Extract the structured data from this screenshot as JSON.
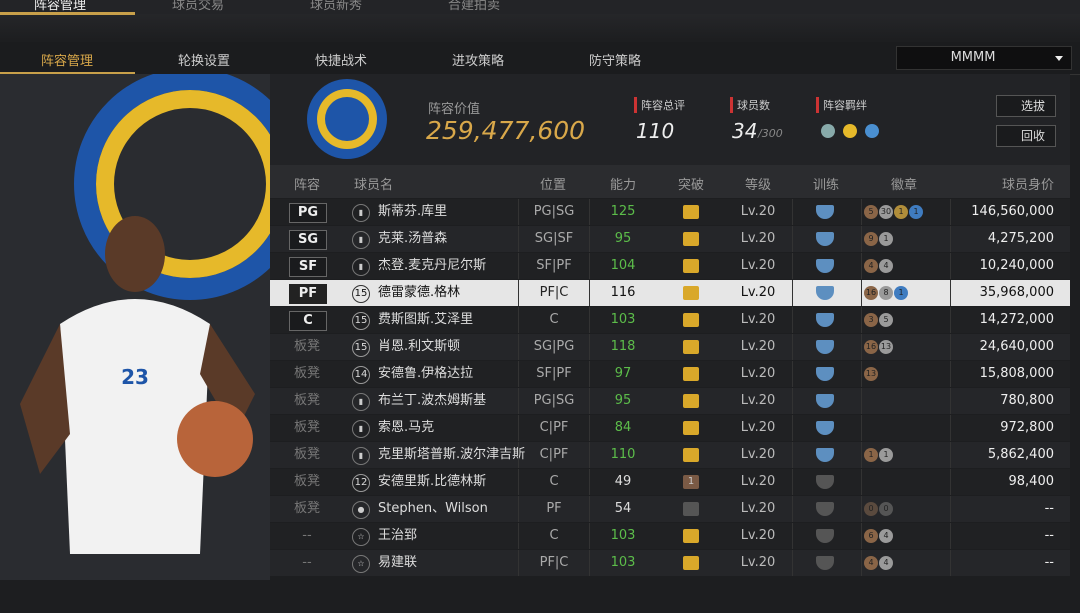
{
  "top_tabs": [
    "阵容管理",
    "球员交易",
    "球员新秀",
    "合建拍卖"
  ],
  "sub_tabs": [
    "阵容管理",
    "轮换设置",
    "快捷战术",
    "进攻策略",
    "防守策略"
  ],
  "dropdown": "MMMM",
  "summary": {
    "value_label": "阵容价值",
    "value": "259,477,600",
    "rating_label": "阵容总评",
    "rating": "110",
    "players_label": "球员数",
    "players": "34",
    "players_max": "/300",
    "chemistry_label": "阵容羁绊"
  },
  "buttons": [
    "选拔",
    "回收"
  ],
  "table": {
    "headers": [
      "阵容",
      "球员名",
      "位置",
      "能力",
      "突破",
      "等级",
      "训练",
      "徽章",
      "球员身价"
    ],
    "rows": [
      {
        "slot": "PG",
        "icon": "bars",
        "name": "斯蒂芬.库里",
        "position": "PG|SG",
        "ability": 125,
        "breakthrough": "#d9a82a",
        "level": "Lv.20",
        "training": "#5d8fc0",
        "badges": [
          {
            "text": "5",
            "color": "#8a6547"
          },
          {
            "text": "30",
            "color": "#9a9a9a"
          },
          {
            "text": "1",
            "color": "#b08d3a"
          },
          {
            "text": "1",
            "color": "#3f7cc0"
          }
        ],
        "price": "146,560,000"
      },
      {
        "slot": "SG",
        "icon": "bars",
        "name": "克莱.汤普森",
        "position": "SG|SF",
        "ability": 95,
        "breakthrough": "#d9a82a",
        "level": "Lv.20",
        "training": "#5d8fc0",
        "badges": [
          {
            "text": "9",
            "color": "#8a6547"
          },
          {
            "text": "1",
            "color": "#9a9a9a"
          }
        ],
        "price": "4,275,200"
      },
      {
        "slot": "SF",
        "icon": "bars",
        "name": "杰登.麦克丹尼尔斯",
        "position": "SF|PF",
        "ability": 104,
        "breakthrough": "#d9a82a",
        "level": "Lv.20",
        "training": "#5d8fc0",
        "badges": [
          {
            "text": "4",
            "color": "#8a6547"
          },
          {
            "text": "4",
            "color": "#9a9a9a"
          }
        ],
        "price": "10,240,000"
      },
      {
        "slot": "PF",
        "icon": "15",
        "name": "德雷蒙德.格林",
        "position": "PF|C",
        "ability": 116,
        "breakthrough": "#d9a82a",
        "level": "Lv.20",
        "training": "#5d8fc0",
        "badges": [
          {
            "text": "16",
            "color": "#8a6547"
          },
          {
            "text": "8",
            "color": "#9a9a9a"
          },
          {
            "text": "1",
            "color": "#3f7cc0"
          }
        ],
        "price": "35,968,000"
      },
      {
        "slot": "C",
        "icon": "15",
        "name": "费斯图斯.艾泽里",
        "position": "C",
        "ability": 103,
        "breakthrough": "#d9a82a",
        "level": "Lv.20",
        "training": "#5d8fc0",
        "badges": [
          {
            "text": "3",
            "color": "#8a6547"
          },
          {
            "text": "5",
            "color": "#9a9a9a"
          }
        ],
        "price": "14,272,000"
      },
      {
        "slot": "板凳",
        "icon": "15",
        "name": "肖恩.利文斯顿",
        "position": "SG|PG",
        "ability": 118,
        "breakthrough": "#d9a82a",
        "level": "Lv.20",
        "training": "#5d8fc0",
        "badges": [
          {
            "text": "16",
            "color": "#8a6547"
          },
          {
            "text": "13",
            "color": "#9a9a9a"
          }
        ],
        "price": "24,640,000"
      },
      {
        "slot": "板凳",
        "icon": "14",
        "name": "安德鲁.伊格达拉",
        "position": "SF|PF",
        "ability": 97,
        "breakthrough": "#d9a82a",
        "level": "Lv.20",
        "training": "#5d8fc0",
        "badges": [
          {
            "text": "13",
            "color": "#8a6547"
          }
        ],
        "price": "15,808,000"
      },
      {
        "slot": "板凳",
        "icon": "bars",
        "name": "布兰丁.波杰姆斯基",
        "position": "PG|SG",
        "ability": 95,
        "breakthrough": "#d9a82a",
        "level": "Lv.20",
        "training": "#5d8fc0",
        "badges": [],
        "price": "780,800"
      },
      {
        "slot": "板凳",
        "icon": "bars",
        "name": "索恩.马克",
        "position": "C|PF",
        "ability": 84,
        "breakthrough": "#d9a82a",
        "level": "Lv.20",
        "training": "#5d8fc0",
        "badges": [],
        "price": "972,800"
      },
      {
        "slot": "板凳",
        "icon": "bars",
        "name": "克里斯塔普斯.波尔津吉斯",
        "position": "C|PF",
        "ability": 110,
        "breakthrough": "#d9a82a",
        "level": "Lv.20",
        "training": "#5d8fc0",
        "badges": [
          {
            "text": "1",
            "color": "#8a6547"
          },
          {
            "text": "1",
            "color": "#9a9a9a"
          }
        ],
        "price": "5,862,400"
      },
      {
        "slot": "板凳",
        "icon": "12",
        "name": "安德里斯.比德林斯",
        "position": "C",
        "ability": 49,
        "breakthrough": "#7a5a45",
        "breakthrough_label": "1",
        "level": "Lv.20",
        "training": "#555",
        "badges": [],
        "price": "98,400"
      },
      {
        "slot": "板凳",
        "icon": "person",
        "name": "Stephen、Wilson",
        "position": "PF",
        "ability": 54,
        "breakthrough": "#555",
        "level": "Lv.20",
        "training": "#555",
        "badges": [
          {
            "text": "0",
            "color": "#5a4a3e"
          },
          {
            "text": "0",
            "color": "#555"
          }
        ],
        "price": "--"
      },
      {
        "slot": "--",
        "icon": "star",
        "name": "王治郅",
        "position": "C",
        "ability": 103,
        "breakthrough": "#d9a82a",
        "level": "Lv.20",
        "training": "#555",
        "badges": [
          {
            "text": "6",
            "color": "#8a6547"
          },
          {
            "text": "4",
            "color": "#9a9a9a"
          }
        ],
        "price": "--"
      },
      {
        "slot": "--",
        "icon": "star",
        "name": "易建联",
        "position": "PF|C",
        "ability": 103,
        "breakthrough": "#d9a82a",
        "level": "Lv.20",
        "training": "#555",
        "badges": [
          {
            "text": "4",
            "color": "#8a6547"
          },
          {
            "text": "4",
            "color": "#9a9a9a"
          }
        ],
        "price": "--"
      }
    ],
    "selected_row": 3
  }
}
